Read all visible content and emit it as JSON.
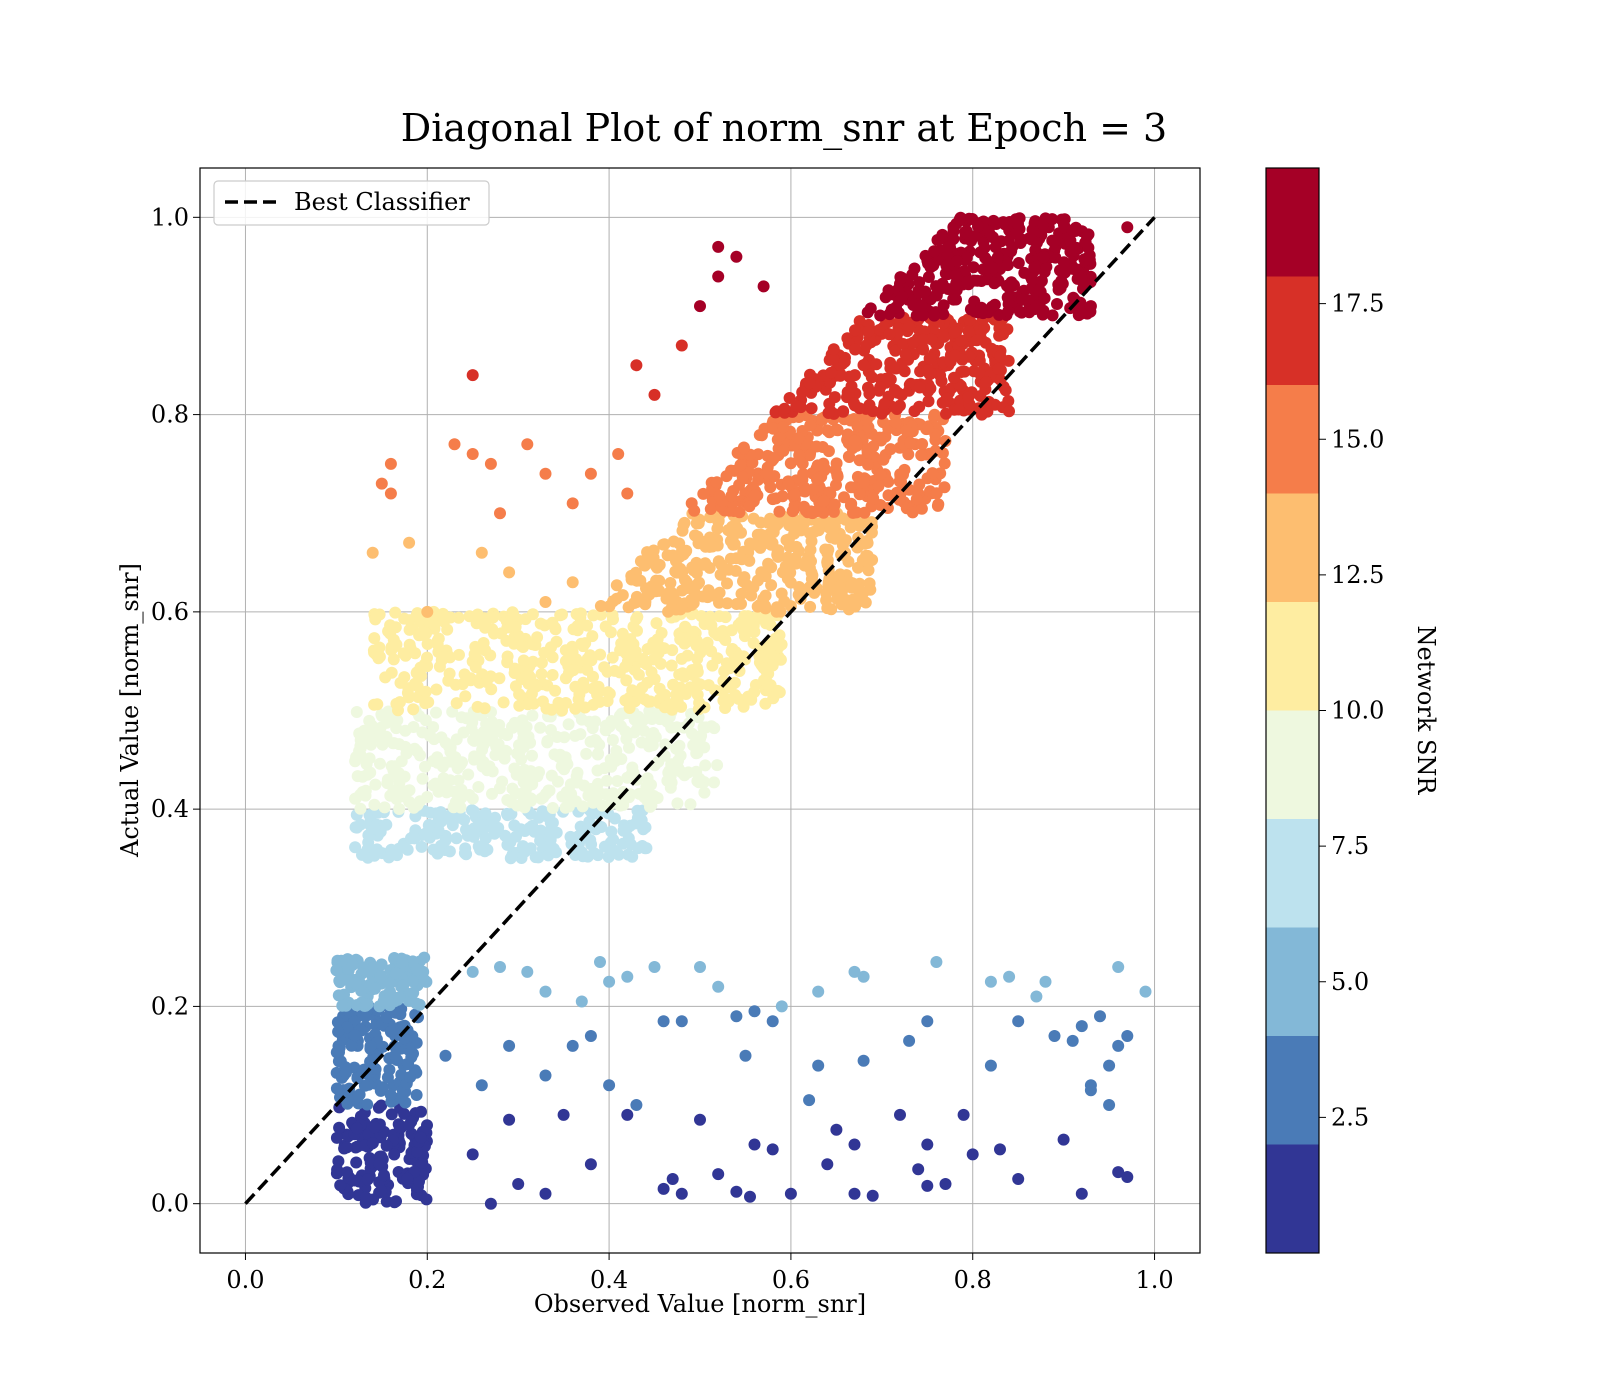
{
  "chart_data": {
    "type": "scatter",
    "title": "Diagonal Plot of norm_snr at Epoch = 3",
    "xlabel": "Observed Value [norm_snr]",
    "ylabel": "Actual Value [norm_snr]",
    "xlim": [
      -0.05,
      1.05
    ],
    "ylim": [
      -0.05,
      1.05
    ],
    "x_ticks": [
      "0.0",
      "0.2",
      "0.4",
      "0.6",
      "0.8",
      "1.0"
    ],
    "y_ticks": [
      "0.0",
      "0.2",
      "0.4",
      "0.6",
      "0.8",
      "1.0"
    ],
    "grid": true,
    "legend": {
      "position": "upper-left",
      "entries": [
        "Best Classifier"
      ]
    },
    "reference_line": {
      "name": "Best Classifier",
      "style": "dashed",
      "color": "#000000",
      "x": [
        0.0,
        1.0
      ],
      "y": [
        0.0,
        1.0
      ]
    },
    "colorbar": {
      "label": "Network SNR",
      "range": [
        0.0,
        20.0
      ],
      "tick_labels": [
        "2.5",
        "5.0",
        "7.5",
        "10.0",
        "12.5",
        "15.0",
        "17.5"
      ],
      "tick_values": [
        2.5,
        5.0,
        7.5,
        10.0,
        12.5,
        15.0,
        17.5
      ],
      "levels": [
        0,
        2,
        4,
        6,
        8,
        10,
        12,
        14,
        16,
        18,
        20
      ],
      "colors": [
        "#313695",
        "#4a7bb7",
        "#83b8d7",
        "#bde2ee",
        "#eef8df",
        "#feeda1",
        "#fdbe70",
        "#f57d4a",
        "#d73027",
        "#a50026"
      ]
    },
    "bands": [
      {
        "band": 1,
        "snr_range": [
          0,
          2
        ],
        "y_range": [
          0.0,
          0.1
        ],
        "dense_x_range": [
          0.1,
          0.2
        ],
        "color": "#313695",
        "scatter": [
          [
            0.25,
            0.05
          ],
          [
            0.3,
            0.02
          ],
          [
            0.35,
            0.09
          ],
          [
            0.38,
            0.04
          ],
          [
            0.42,
            0.09
          ],
          [
            0.46,
            0.015
          ],
          [
            0.47,
            0.025
          ],
          [
            0.48,
            0.01
          ],
          [
            0.5,
            0.085
          ],
          [
            0.52,
            0.03
          ],
          [
            0.54,
            0.012
          ],
          [
            0.555,
            0.007
          ],
          [
            0.56,
            0.06
          ],
          [
            0.58,
            0.055
          ],
          [
            0.6,
            0.01
          ],
          [
            0.64,
            0.04
          ],
          [
            0.65,
            0.075
          ],
          [
            0.67,
            0.06
          ],
          [
            0.67,
            0.01
          ],
          [
            0.69,
            0.008
          ],
          [
            0.72,
            0.09
          ],
          [
            0.74,
            0.035
          ],
          [
            0.75,
            0.06
          ],
          [
            0.75,
            0.018
          ],
          [
            0.77,
            0.02
          ],
          [
            0.79,
            0.09
          ],
          [
            0.8,
            0.05
          ],
          [
            0.83,
            0.055
          ],
          [
            0.85,
            0.025
          ],
          [
            0.9,
            0.065
          ],
          [
            0.92,
            0.01
          ],
          [
            0.96,
            0.032
          ],
          [
            0.97,
            0.027
          ],
          [
            0.27,
            0.0
          ],
          [
            0.29,
            0.085
          ],
          [
            0.33,
            0.01
          ]
        ]
      },
      {
        "band": 2,
        "snr_range": [
          2,
          4
        ],
        "y_range": [
          0.1,
          0.2
        ],
        "dense_x_range": [
          0.1,
          0.19
        ],
        "color": "#4a7bb7",
        "scatter": [
          [
            0.22,
            0.15
          ],
          [
            0.26,
            0.12
          ],
          [
            0.29,
            0.16
          ],
          [
            0.33,
            0.13
          ],
          [
            0.36,
            0.16
          ],
          [
            0.38,
            0.17
          ],
          [
            0.4,
            0.12
          ],
          [
            0.43,
            0.1
          ],
          [
            0.46,
            0.185
          ],
          [
            0.48,
            0.185
          ],
          [
            0.54,
            0.19
          ],
          [
            0.55,
            0.15
          ],
          [
            0.56,
            0.195
          ],
          [
            0.58,
            0.185
          ],
          [
            0.62,
            0.105
          ],
          [
            0.63,
            0.14
          ],
          [
            0.68,
            0.145
          ],
          [
            0.73,
            0.165
          ],
          [
            0.75,
            0.185
          ],
          [
            0.82,
            0.14
          ],
          [
            0.85,
            0.185
          ],
          [
            0.89,
            0.17
          ],
          [
            0.91,
            0.165
          ],
          [
            0.92,
            0.18
          ],
          [
            0.93,
            0.12
          ],
          [
            0.94,
            0.19
          ],
          [
            0.95,
            0.14
          ],
          [
            0.96,
            0.16
          ],
          [
            0.97,
            0.17
          ],
          [
            0.93,
            0.115
          ],
          [
            0.95,
            0.1
          ]
        ]
      },
      {
        "band": 3,
        "snr_range": [
          4,
          6
        ],
        "y_range": [
          0.2,
          0.25
        ],
        "dense_x_range": [
          0.1,
          0.2
        ],
        "color": "#83b8d7",
        "scatter": [
          [
            0.25,
            0.235
          ],
          [
            0.28,
            0.24
          ],
          [
            0.31,
            0.235
          ],
          [
            0.33,
            0.215
          ],
          [
            0.37,
            0.205
          ],
          [
            0.39,
            0.245
          ],
          [
            0.4,
            0.225
          ],
          [
            0.42,
            0.23
          ],
          [
            0.45,
            0.24
          ],
          [
            0.5,
            0.24
          ],
          [
            0.52,
            0.22
          ],
          [
            0.59,
            0.2
          ],
          [
            0.63,
            0.215
          ],
          [
            0.67,
            0.235
          ],
          [
            0.68,
            0.23
          ],
          [
            0.76,
            0.245
          ],
          [
            0.82,
            0.225
          ],
          [
            0.84,
            0.23
          ],
          [
            0.87,
            0.21
          ],
          [
            0.88,
            0.225
          ],
          [
            0.96,
            0.24
          ],
          [
            0.99,
            0.215
          ]
        ]
      },
      {
        "band": 4,
        "snr_range": [
          6,
          8
        ],
        "y_range": [
          0.35,
          0.4
        ],
        "dense_x_range": [
          0.12,
          0.45
        ],
        "color": "#bde2ee",
        "scatter": []
      },
      {
        "band": 5,
        "snr_range": [
          8,
          10
        ],
        "y_range": [
          0.4,
          0.5
        ],
        "dense_x_range": [
          0.12,
          0.52
        ],
        "color": "#eef8df",
        "scatter": []
      },
      {
        "band": 6,
        "snr_range": [
          10,
          12
        ],
        "y_range": [
          0.5,
          0.6
        ],
        "dense_x_range": [
          0.14,
          0.59
        ],
        "color": "#feeda1",
        "scatter": []
      },
      {
        "band": 7,
        "snr_range": [
          12,
          14
        ],
        "y_range": [
          0.6,
          0.7
        ],
        "dense_x_range": [
          0.38,
          0.69
        ],
        "color": "#fdbe70",
        "scatter": [
          [
            0.14,
            0.66
          ],
          [
            0.18,
            0.67
          ],
          [
            0.2,
            0.6
          ],
          [
            0.26,
            0.66
          ],
          [
            0.29,
            0.64
          ],
          [
            0.33,
            0.61
          ],
          [
            0.36,
            0.63
          ]
        ]
      },
      {
        "band": 8,
        "snr_range": [
          14,
          16
        ],
        "y_range": [
          0.7,
          0.8
        ],
        "dense_x_range": [
          0.46,
          0.77
        ],
        "color": "#f57d4a",
        "scatter": [
          [
            0.15,
            0.73
          ],
          [
            0.16,
            0.72
          ],
          [
            0.16,
            0.75
          ],
          [
            0.23,
            0.77
          ],
          [
            0.25,
            0.76
          ],
          [
            0.27,
            0.75
          ],
          [
            0.28,
            0.7
          ],
          [
            0.31,
            0.77
          ],
          [
            0.33,
            0.74
          ],
          [
            0.36,
            0.71
          ],
          [
            0.38,
            0.74
          ],
          [
            0.41,
            0.76
          ],
          [
            0.42,
            0.72
          ]
        ]
      },
      {
        "band": 9,
        "snr_range": [
          16,
          18
        ],
        "y_range": [
          0.8,
          0.9
        ],
        "dense_x_range": [
          0.55,
          0.84
        ],
        "color": "#d73027",
        "scatter": [
          [
            0.25,
            0.84
          ],
          [
            0.43,
            0.85
          ],
          [
            0.45,
            0.82
          ],
          [
            0.48,
            0.87
          ],
          [
            0.81,
            0.8
          ]
        ]
      },
      {
        "band": 10,
        "snr_range": [
          18,
          20
        ],
        "y_range": [
          0.9,
          1.0
        ],
        "dense_x_range": [
          0.62,
          0.93
        ],
        "color": "#a50026",
        "scatter": [
          [
            0.5,
            0.91
          ],
          [
            0.52,
            0.94
          ],
          [
            0.52,
            0.97
          ],
          [
            0.54,
            0.96
          ],
          [
            0.57,
            0.93
          ],
          [
            0.97,
            0.99
          ],
          [
            0.93,
            0.91
          ]
        ]
      }
    ]
  }
}
